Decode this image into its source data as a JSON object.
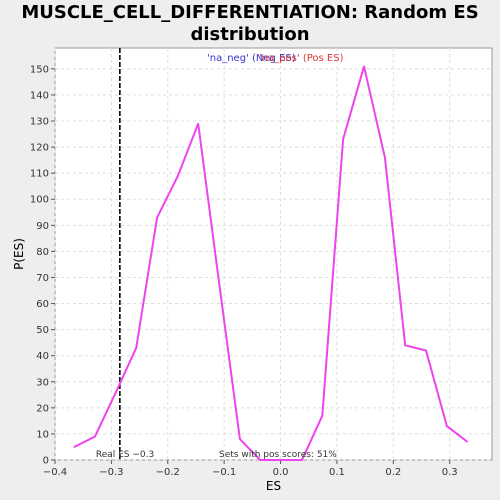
{
  "chart_data": {
    "type": "line",
    "title_line1": "MUSCLE_CELL_DIFFERENTIATION: Random ES",
    "title_line2": "distribution",
    "xlabel": "ES",
    "ylabel": "P(ES)",
    "xlim": [
      -0.4,
      0.375
    ],
    "ylim": [
      0,
      158
    ],
    "xticks": [
      -0.4,
      -0.3,
      -0.2,
      -0.1,
      0.0,
      0.1,
      0.2,
      0.3
    ],
    "xtick_labels": [
      "−0.4",
      "−0.3",
      "−0.2",
      "−0.1",
      "0.0",
      "0.1",
      "0.2",
      "0.3"
    ],
    "yticks": [
      0,
      10,
      20,
      30,
      40,
      50,
      60,
      70,
      80,
      90,
      100,
      110,
      120,
      130,
      140,
      150
    ],
    "grid": true,
    "legend": {
      "neg_label": "'na_neg' (Neg ES)",
      "pos_label": "'na_pos' (Pos ES)",
      "placement": "top-center"
    },
    "series": [
      {
        "color": "#ee44ee",
        "x": [
          -0.366,
          -0.329,
          -0.292,
          -0.256,
          -0.219,
          -0.182,
          -0.146,
          -0.109,
          -0.072,
          -0.036,
          0.001,
          0.038,
          0.074,
          0.111,
          0.148,
          0.185,
          0.221,
          0.258,
          0.295,
          0.331
        ],
        "y": [
          5,
          9,
          26,
          43,
          93,
          109,
          129,
          68,
          8,
          0,
          0,
          0,
          17,
          123,
          151,
          116,
          44,
          42,
          13,
          7
        ]
      }
    ],
    "real_es": {
      "value": -0.285,
      "label": "Real ES −0.3"
    },
    "pos_scores_note": "Sets with pos scores: 51%"
  }
}
